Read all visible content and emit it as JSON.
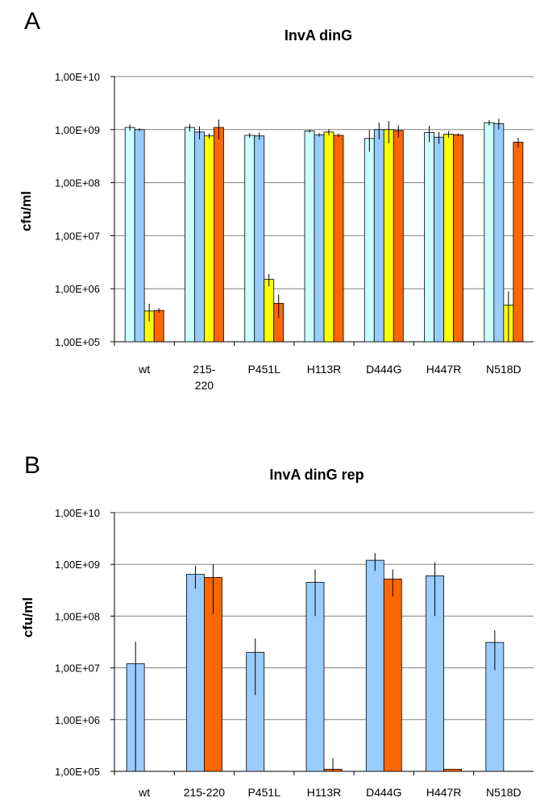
{
  "panels": [
    {
      "letter": "A",
      "chart_data": {
        "type": "bar",
        "title": "InvA dinG",
        "ylabel": "cfu/ml",
        "xlabel": "",
        "yscale": "log",
        "ylim": [
          100000,
          10000000000
        ],
        "yticks": [
          "1,00E+05",
          "1,00E+06",
          "1,00E+07",
          "1,00E+08",
          "1,00E+09",
          "1,00E+10"
        ],
        "categories": [
          [
            "wt"
          ],
          [
            "215-",
            "220"
          ],
          [
            "P451L"
          ],
          [
            "H113R"
          ],
          [
            "D444G"
          ],
          [
            "H447R"
          ],
          [
            "N518D"
          ]
        ],
        "grid": true,
        "series": [
          {
            "color": "#ccffff",
            "values": [
              1100000000,
              1100000000,
              780000000,
              940000000,
              680000000,
              880000000,
              1350000000
            ],
            "errors": [
              150000000,
              180000000,
              80000000,
              60000000,
              300000000,
              300000000,
              150000000
            ]
          },
          {
            "color": "#99ccff",
            "values": [
              1000000000,
              900000000,
              760000000,
              800000000,
              1000000000,
              720000000,
              1300000000
            ],
            "errors": [
              60000000,
              250000000,
              120000000,
              60000000,
              350000000,
              180000000,
              300000000
            ]
          },
          {
            "color": "#ffff00",
            "values": [
              380000,
              760000000,
              1500000,
              900000000,
              1000000000,
              820000000,
              490000
            ],
            "errors": [
              140000,
              80000000,
              400000,
              120000000,
              450000000,
              120000000,
              400000
            ]
          },
          {
            "color": "#ff6600",
            "values": [
              390000,
              1100000000,
              530000,
              780000000,
              960000000,
              800000000,
              580000000
            ],
            "errors": [
              40000,
              450000000,
              250000,
              60000000,
              250000000,
              50000000,
              120000000
            ]
          }
        ]
      }
    },
    {
      "letter": "B",
      "chart_data": {
        "type": "bar",
        "title": "InvA dinG rep",
        "ylabel": "cfu/ml",
        "xlabel": "",
        "yscale": "log",
        "ylim": [
          100000,
          10000000000
        ],
        "yticks": [
          "1,00E+05",
          "1,00E+06",
          "1,00E+07",
          "1,00E+08",
          "1,00E+09",
          "1,00E+10"
        ],
        "categories": [
          [
            "wt"
          ],
          [
            "215-220"
          ],
          [
            "P451L"
          ],
          [
            "H113R"
          ],
          [
            "D444G"
          ],
          [
            "H447R"
          ],
          [
            "N518D"
          ]
        ],
        "grid": true,
        "series": [
          {
            "color": "#99ccff",
            "values": [
              12000000,
              640000000,
              20000000,
              450000000,
              1200000000,
              600000000,
              31000000
            ],
            "errors": [
              20000000,
              300000000,
              17000000,
              350000000,
              450000000,
              500000000,
              22000000
            ]
          },
          {
            "color": "#ff6600",
            "values": [
              null,
              560000000,
              null,
              110000,
              520000000,
              110000,
              null
            ],
            "errors": [
              null,
              450000000,
              null,
              70000,
              280000000,
              null,
              null
            ]
          }
        ]
      }
    }
  ]
}
